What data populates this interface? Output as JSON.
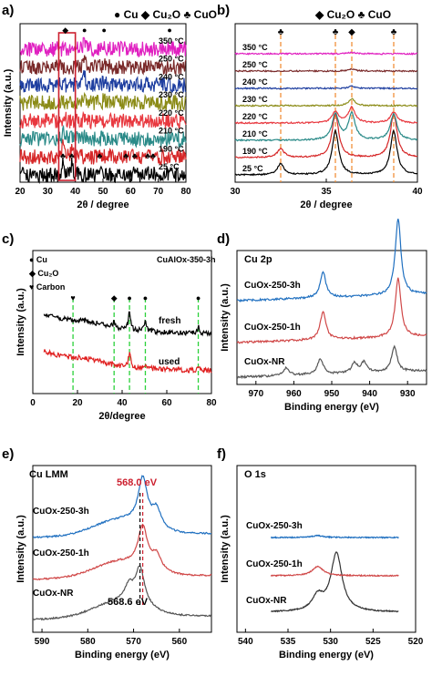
{
  "chart_data": [
    {
      "panel": "a)",
      "type": "line",
      "xlabel": "2θ / degree",
      "ylabel": "Intensity (a.u.)",
      "xlim": [
        20,
        80
      ],
      "xticks": [
        20,
        30,
        40,
        50,
        60,
        70,
        80
      ],
      "legend": [
        {
          "symbol": "●",
          "label": "Cu"
        },
        {
          "symbol": "◆",
          "label": "Cu2O"
        },
        {
          "symbol": "♣",
          "label": "CuO"
        }
      ],
      "series": [
        {
          "name": "25 °C",
          "color": "#000000",
          "peaks": [
            [
              35.5,
              1.0
            ],
            [
              38.7,
              1.0
            ],
            [
              48.8,
              0.25
            ],
            [
              58.3,
              0.2
            ],
            [
              61.5,
              0.2
            ],
            [
              66.2,
              0.2
            ],
            [
              68.1,
              0.2
            ]
          ]
        },
        {
          "name": "190 °C",
          "color": "#d62728",
          "peaks": [
            [
              35.5,
              1.0
            ],
            [
              38.7,
              1.0
            ]
          ]
        },
        {
          "name": "210 °C",
          "color": "#2a8a88",
          "peaks": [
            [
              35.5,
              0.4
            ],
            [
              36.4,
              0.5
            ],
            [
              38.7,
              0.35
            ],
            [
              43.3,
              0.3
            ]
          ]
        },
        {
          "name": "220 °C",
          "color": "#e8383f",
          "peaks": [
            [
              36.4,
              0.35
            ],
            [
              43.3,
              0.3
            ]
          ]
        },
        {
          "name": "230 °C",
          "color": "#8c8c18",
          "peaks": [
            [
              36.4,
              0.2
            ],
            [
              43.3,
              1.0
            ],
            [
              50.4,
              0.4
            ],
            [
              74.1,
              0.25
            ]
          ]
        },
        {
          "name": "240 °C",
          "color": "#1f3fa0",
          "peaks": [
            [
              43.3,
              1.0
            ],
            [
              50.4,
              0.4
            ],
            [
              74.1,
              0.25
            ]
          ]
        },
        {
          "name": "250 °C",
          "color": "#7a2a2a",
          "peaks": [
            [
              43.3,
              1.0
            ],
            [
              50.4,
              0.4
            ],
            [
              74.1,
              0.25
            ]
          ]
        },
        {
          "name": "350 °C",
          "color": "#e020c0",
          "peaks": [
            [
              43.3,
              1.0
            ],
            [
              50.4,
              0.4
            ],
            [
              74.1,
              0.25
            ]
          ]
        }
      ],
      "peak_markers": [
        {
          "x": 36.4,
          "symbol": "◆",
          "series": "350 °C"
        },
        {
          "x": 43.3,
          "symbol": "●",
          "series": "350 °C"
        },
        {
          "x": 50.4,
          "symbol": "●",
          "series": "350 °C"
        },
        {
          "x": 74.1,
          "symbol": "●",
          "series": "350 °C"
        },
        {
          "x": 35.5,
          "symbol": "♣",
          "series": "25 °C"
        },
        {
          "x": 38.7,
          "symbol": "♣",
          "series": "25 °C"
        },
        {
          "x": 48.8,
          "symbol": "♣",
          "series": "25 °C"
        },
        {
          "x": 58.3,
          "symbol": "♣",
          "series": "25 °C"
        },
        {
          "x": 61.5,
          "symbol": "♣",
          "series": "25 °C"
        },
        {
          "x": 66.2,
          "symbol": "♣",
          "series": "25 °C"
        },
        {
          "x": 68.1,
          "symbol": "♣",
          "series": "25 °C"
        }
      ],
      "highlight_box_x": [
        34,
        40
      ]
    },
    {
      "panel": "b)",
      "type": "line",
      "xlabel": "2θ / degree",
      "xlim": [
        30,
        40
      ],
      "xticks": [
        30,
        35,
        40
      ],
      "legend": [
        {
          "symbol": "◆",
          "label": "Cu2O"
        },
        {
          "symbol": "♣",
          "label": "CuO"
        }
      ],
      "reference_lines": [
        {
          "x": 32.5,
          "symbol": "♣"
        },
        {
          "x": 35.5,
          "symbol": "♣"
        },
        {
          "x": 36.4,
          "symbol": "◆"
        },
        {
          "x": 38.7,
          "symbol": "♣"
        }
      ],
      "series": [
        {
          "name": "25 °C",
          "color": "#000000",
          "peaks": [
            [
              32.5,
              0.25
            ],
            [
              35.5,
              1.0
            ],
            [
              38.7,
              1.0
            ]
          ]
        },
        {
          "name": "190 °C",
          "color": "#d62728",
          "peaks": [
            [
              32.5,
              0.2
            ],
            [
              35.5,
              1.0
            ],
            [
              38.7,
              1.0
            ]
          ]
        },
        {
          "name": "210 °C",
          "color": "#2a8a88",
          "peaks": [
            [
              35.5,
              0.6
            ],
            [
              36.4,
              0.6
            ],
            [
              38.7,
              0.6
            ]
          ]
        },
        {
          "name": "220 °C",
          "color": "#e8383f",
          "peaks": [
            [
              35.5,
              0.25
            ],
            [
              36.4,
              0.35
            ],
            [
              38.7,
              0.25
            ]
          ]
        },
        {
          "name": "230 °C",
          "color": "#8c8c18",
          "peaks": [
            [
              36.4,
              0.15
            ]
          ]
        },
        {
          "name": "240 °C",
          "color": "#1f3fa0",
          "peaks": [
            [
              36.4,
              0.05
            ]
          ]
        },
        {
          "name": "250 °C",
          "color": "#7a2a2a",
          "peaks": [
            [
              36.4,
              0.05
            ]
          ]
        },
        {
          "name": "350 °C",
          "color": "#e020c0",
          "peaks": [
            [
              36.4,
              0.03
            ]
          ]
        }
      ]
    },
    {
      "panel": "c)",
      "type": "line",
      "title": "CuAlOx-350-3h",
      "xlabel": "2θ/degree",
      "ylabel": "Intensity (a.u.)",
      "xlim": [
        0,
        80
      ],
      "xticks": [
        0,
        20,
        40,
        60,
        80
      ],
      "legend": [
        {
          "symbol": "●",
          "label": "Cu"
        },
        {
          "symbol": "◆",
          "label": "Cu2O"
        },
        {
          "symbol": "♥",
          "label": "Carbon"
        }
      ],
      "reference_lines": [
        {
          "x": 18,
          "symbol": "♥"
        },
        {
          "x": 36.4,
          "symbol": "◆"
        },
        {
          "x": 43.3,
          "symbol": "●"
        },
        {
          "x": 50.4,
          "symbol": "●"
        },
        {
          "x": 74.1,
          "symbol": "●"
        }
      ],
      "series": [
        {
          "name": "fresh",
          "color": "#000000",
          "peaks": [
            [
              36.4,
              0.4
            ],
            [
              43.3,
              1.2
            ],
            [
              50.4,
              0.6
            ],
            [
              74.1,
              0.4
            ]
          ]
        },
        {
          "name": "used",
          "color": "#e02020",
          "peaks": [
            [
              43.3,
              1.0
            ],
            [
              50.4,
              0.3
            ],
            [
              74.1,
              0.2
            ]
          ]
        }
      ]
    },
    {
      "panel": "d)",
      "type": "line",
      "title": "Cu 2p",
      "xlabel": "Binding energy (eV)",
      "ylabel": "Intensity (a.u.)",
      "xlim": [
        975,
        925
      ],
      "xticks": [
        970,
        960,
        950,
        940,
        930
      ],
      "series": [
        {
          "name": "CuOx-NR",
          "color": "#555555",
          "peaks": [
            [
              933.5,
              1.0
            ],
            [
              941.5,
              0.4
            ],
            [
              944,
              0.4
            ],
            [
              953,
              0.6
            ],
            [
              962,
              0.3
            ]
          ]
        },
        {
          "name": "CuOx-250-1h",
          "color": "#d04848",
          "peaks": [
            [
              932.5,
              2.3
            ],
            [
              952.3,
              1.1
            ]
          ]
        },
        {
          "name": "CuOx-250-3h",
          "color": "#2070c0",
          "peaks": [
            [
              932.5,
              3.0
            ],
            [
              952.3,
              1.0
            ]
          ]
        }
      ]
    },
    {
      "panel": "e)",
      "type": "line",
      "title": "Cu LMM",
      "xlabel": "Binding energy (eV)",
      "ylabel": "Intensity (a.u.)",
      "xlim": [
        592,
        553
      ],
      "xticks": [
        590,
        580,
        570,
        560
      ],
      "annotations": [
        {
          "text": "568.0 eV",
          "x": 568.0,
          "color": "#cc1f2e"
        },
        {
          "text": "568.6 eV",
          "x": 568.6,
          "color": "#000000"
        }
      ],
      "series": [
        {
          "name": "CuOx-NR",
          "color": "#555555",
          "peaks": [
            [
              568.6,
              1.2
            ],
            [
              571,
              0.5
            ]
          ]
        },
        {
          "name": "CuOx-250-1h",
          "color": "#d04848",
          "peaks": [
            [
              568.0,
              1.3
            ],
            [
              565,
              0.5
            ]
          ]
        },
        {
          "name": "CuOx-250-3h",
          "color": "#2070c0",
          "peaks": [
            [
              568.0,
              1.5
            ],
            [
              565,
              0.6
            ]
          ]
        }
      ]
    },
    {
      "panel": "f)",
      "type": "line",
      "title": "O 1s",
      "ylabel": "Intensity (a.u.)",
      "xlabel": "Binding energy (eV)",
      "xlim": [
        541,
        520
      ],
      "xticks": [
        540,
        535,
        530,
        525,
        520
      ],
      "series": [
        {
          "name": "CuOx-NR",
          "color": "#333333",
          "peaks": [
            [
              529.3,
              3.2
            ],
            [
              531.5,
              0.8
            ]
          ]
        },
        {
          "name": "CuOx-250-1h",
          "color": "#d04848",
          "peaks": [
            [
              531.5,
              0.5
            ]
          ]
        },
        {
          "name": "CuOx-250-3h",
          "color": "#2070c0",
          "peaks": [
            [
              531.5,
              0.1
            ]
          ]
        }
      ]
    }
  ],
  "labels": {
    "a_legend": "● Cu ◆ Cu₂O ♣ CuO",
    "b_legend": "◆ Cu₂O ♣ CuO",
    "c_cu": "● Cu",
    "c_cu2o": "◆ Cu₂O",
    "c_carbon": "♥ Carbon",
    "c_title": "CuAlOx-350-3h",
    "d_title": "Cu 2p",
    "e_title": "Cu LMM",
    "f_title": "O 1s",
    "e_ann_top": "568.0 eV",
    "e_ann_bot": "568.6 eV"
  }
}
